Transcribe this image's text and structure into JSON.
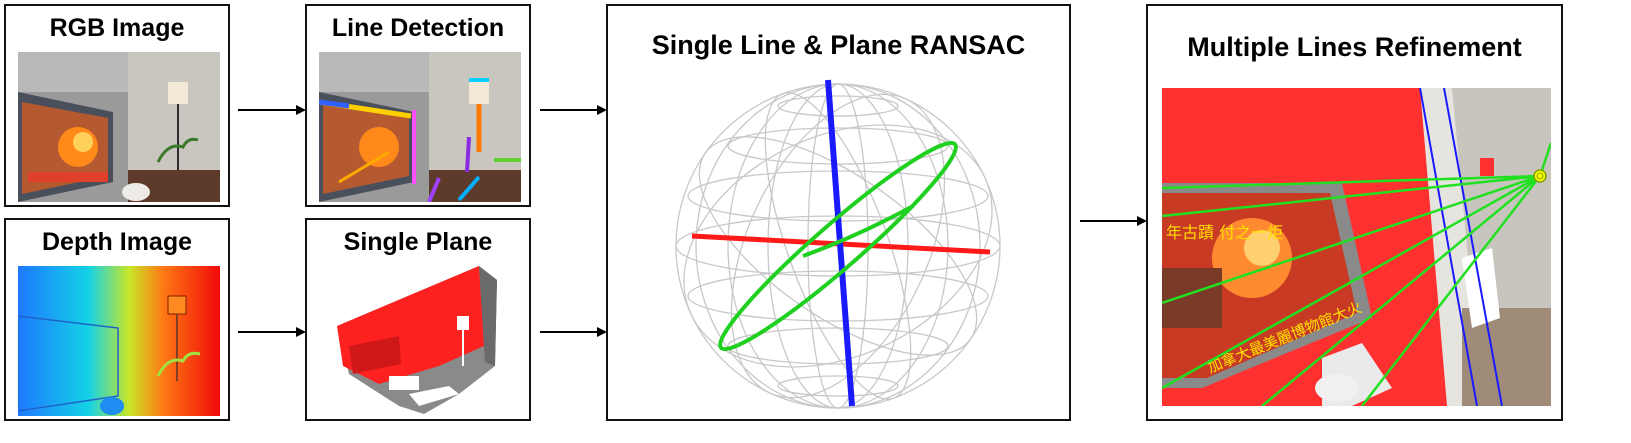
{
  "diagram": {
    "rgb_image": {
      "title": "RGB Image"
    },
    "line_detection": {
      "title": "Line Detection"
    },
    "depth_image": {
      "title": "Depth Image"
    },
    "single_plane": {
      "title": "Single Plane"
    },
    "ransac": {
      "title": "Single Line & Plane RANSAC"
    },
    "refinement": {
      "title": "Multiple Lines Refinement"
    },
    "tv_caption_1": "年古蹟 付之一炬",
    "tv_caption_2": "加拿大最美麗博物館大火",
    "colors": {
      "red_axis": "#ff1a1a",
      "blue_axis": "#1a1aff",
      "green_circle": "#20d020",
      "sphere_grid": "#c8c8c8",
      "plane_red": "#ff2020"
    }
  }
}
